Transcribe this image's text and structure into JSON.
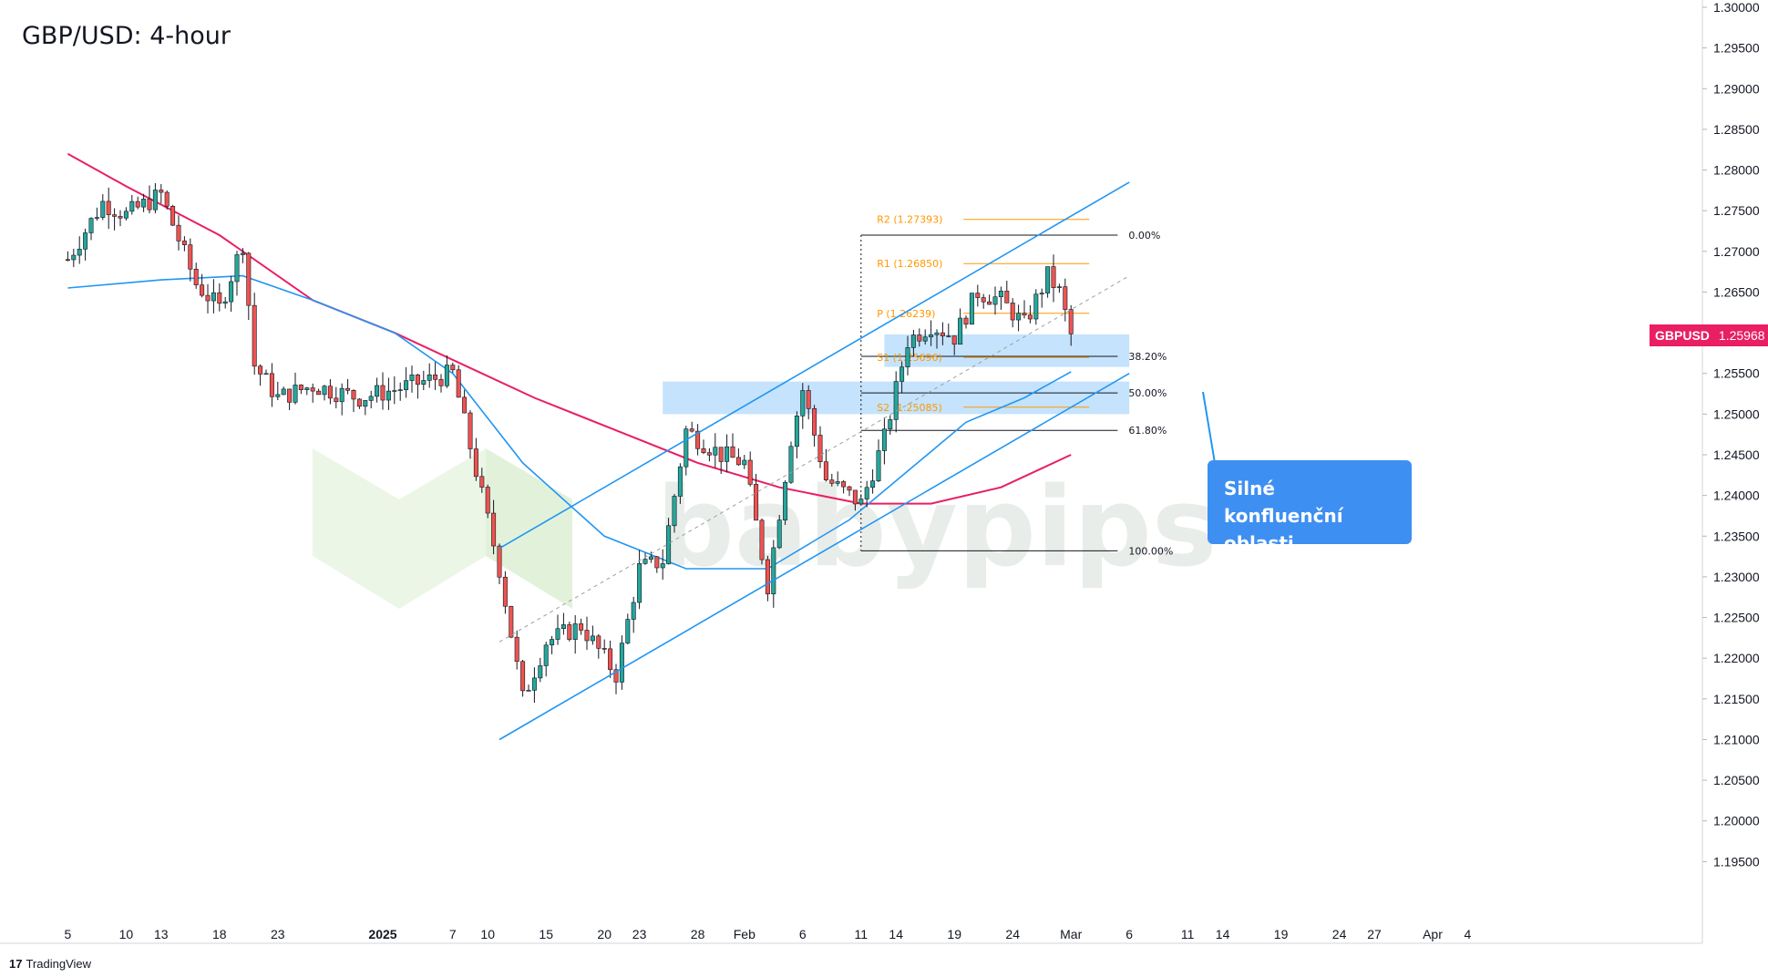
{
  "header": {
    "title": "GBP/USD: 4-hour"
  },
  "price_tag": {
    "symbol": "GBPUSD",
    "value": "1.25968",
    "color": "#e91e63"
  },
  "callout": {
    "line1": "Silné konfluenční",
    "line2": "oblasti",
    "color": "#3d8ff2"
  },
  "branding": {
    "platform": "TradingView",
    "watermark": "babypips"
  },
  "colors": {
    "up": "#26a69a",
    "down": "#ef5350",
    "ma_fast": "#2196f3",
    "ma_slow": "#e91e63",
    "channel": "#2196f3",
    "zone": "#bbdefb",
    "pivot": "#ff9800",
    "fib": "#131722"
  },
  "chart_data": {
    "type": "candlestick",
    "title": "GBP/USD: 4-hour",
    "ylim": [
      1.19,
      1.3
    ],
    "y_ticks": [
      "1.30000",
      "1.29500",
      "1.29000",
      "1.28500",
      "1.28000",
      "1.27500",
      "1.27000",
      "1.26500",
      "1.26000",
      "1.25500",
      "1.25000",
      "1.24500",
      "1.24000",
      "1.23500",
      "1.23000",
      "1.22500",
      "1.22000",
      "1.21500",
      "1.21000",
      "1.20500",
      "1.20000",
      "1.19500"
    ],
    "x_ticks": [
      "5",
      "10",
      "13",
      "18",
      "23",
      "2025",
      "7",
      "10",
      "15",
      "20",
      "23",
      "28",
      "Feb",
      "6",
      "11",
      "14",
      "19",
      "24",
      "Mar",
      "6",
      "11",
      "14",
      "19",
      "24",
      "27",
      "Apr",
      "4"
    ],
    "x_ticks_bold": [
      "2025"
    ],
    "series": [
      {
        "name": "MA fast",
        "color": "#2196f3"
      },
      {
        "name": "MA slow",
        "color": "#e91e63"
      }
    ],
    "price_path": [
      [
        "2024-12-05",
        1.269
      ],
      [
        "2024-12-08",
        1.276
      ],
      [
        "2024-12-10",
        1.2745
      ],
      [
        "2024-12-13",
        1.277
      ],
      [
        "2024-12-16",
        1.266
      ],
      [
        "2024-12-18",
        1.263
      ],
      [
        "2024-12-20",
        1.271
      ],
      [
        "2024-12-21",
        1.256
      ],
      [
        "2024-12-23",
        1.252
      ],
      [
        "2024-12-26",
        1.2535
      ],
      [
        "2024-12-30",
        1.252
      ],
      [
        "2025-01-02",
        1.253
      ],
      [
        "2025-01-07",
        1.255
      ],
      [
        "2025-01-10",
        1.237
      ],
      [
        "2025-01-11",
        1.231
      ],
      [
        "2025-01-13",
        1.215
      ],
      [
        "2025-01-15",
        1.222
      ],
      [
        "2025-01-18",
        1.224
      ],
      [
        "2025-01-21",
        1.218
      ],
      [
        "2025-01-23",
        1.231
      ],
      [
        "2025-01-25",
        1.232
      ],
      [
        "2025-01-27",
        1.248
      ],
      [
        "2025-01-30",
        1.245
      ],
      [
        "2025-02-01",
        1.244
      ],
      [
        "2025-02-03",
        1.229
      ],
      [
        "2025-02-05",
        1.247
      ],
      [
        "2025-02-06",
        1.253
      ],
      [
        "2025-02-08",
        1.242
      ],
      [
        "2025-02-11",
        1.239
      ],
      [
        "2025-02-13",
        1.247
      ],
      [
        "2025-02-15",
        1.259
      ],
      [
        "2025-02-17",
        1.261
      ],
      [
        "2025-02-19",
        1.2595
      ],
      [
        "2025-02-21",
        1.265
      ],
      [
        "2025-02-23",
        1.264
      ],
      [
        "2025-02-25",
        1.261
      ],
      [
        "2025-02-26",
        1.264
      ],
      [
        "2025-02-27",
        1.267
      ],
      [
        "2025-02-28",
        1.265
      ],
      [
        "2025-03-01",
        1.2597
      ]
    ],
    "ma_fast": [
      [
        "2024-12-05",
        1.2655
      ],
      [
        "2024-12-13",
        1.2665
      ],
      [
        "2024-12-20",
        1.267
      ],
      [
        "2024-12-26",
        1.264
      ],
      [
        "2025-01-02",
        1.26
      ],
      [
        "2025-01-07",
        1.255
      ],
      [
        "2025-01-13",
        1.244
      ],
      [
        "2025-01-20",
        1.235
      ],
      [
        "2025-01-27",
        1.231
      ],
      [
        "2025-02-03",
        1.231
      ],
      [
        "2025-02-10",
        1.237
      ],
      [
        "2025-02-15",
        1.243
      ],
      [
        "2025-02-20",
        1.249
      ],
      [
        "2025-02-25",
        1.252
      ],
      [
        "2025-03-01",
        1.2552
      ]
    ],
    "ma_slow": [
      [
        "2024-12-05",
        1.282
      ],
      [
        "2024-12-10",
        1.278
      ],
      [
        "2024-12-18",
        1.272
      ],
      [
        "2024-12-26",
        1.264
      ],
      [
        "2025-01-02",
        1.26
      ],
      [
        "2025-01-08",
        1.256
      ],
      [
        "2025-01-14",
        1.252
      ],
      [
        "2025-01-21",
        1.248
      ],
      [
        "2025-01-28",
        1.244
      ],
      [
        "2025-02-04",
        1.241
      ],
      [
        "2025-02-11",
        1.239
      ],
      [
        "2025-02-17",
        1.239
      ],
      [
        "2025-02-23",
        1.241
      ],
      [
        "2025-03-01",
        1.245
      ]
    ],
    "channel": {
      "upper": [
        [
          "2025-01-11",
          1.2335
        ],
        [
          "2025-03-06",
          1.2785
        ]
      ],
      "lower": [
        [
          "2025-01-11",
          1.21
        ],
        [
          "2025-03-06",
          1.255
        ]
      ],
      "mid": [
        [
          "2025-01-11",
          1.222
        ],
        [
          "2025-03-06",
          1.267
        ]
      ]
    },
    "zones": [
      {
        "from": "2025-02-13",
        "to": "2025-03-06",
        "low": 1.2558,
        "high": 1.2598
      },
      {
        "from": "2025-01-25",
        "to": "2025-03-06",
        "low": 1.25,
        "high": 1.254
      }
    ],
    "pivots": [
      {
        "label": "R2 (1.27393)",
        "value": 1.27393
      },
      {
        "label": "R1 (1.26850)",
        "value": 1.2685
      },
      {
        "label": "P (1.26239)",
        "value": 1.26239
      },
      {
        "label": "S1 (1.25696)",
        "value": 1.25696
      },
      {
        "label": "S2 (1.25085)",
        "value": 1.25085
      }
    ],
    "fib_levels": [
      {
        "label": "0.00%",
        "value": 1.272
      },
      {
        "label": "38.20%",
        "value": 1.2571
      },
      {
        "label": "50.00%",
        "value": 1.2526
      },
      {
        "label": "61.80%",
        "value": 1.248
      },
      {
        "label": "100.00%",
        "value": 1.2332
      }
    ],
    "last_price": 1.25968
  }
}
